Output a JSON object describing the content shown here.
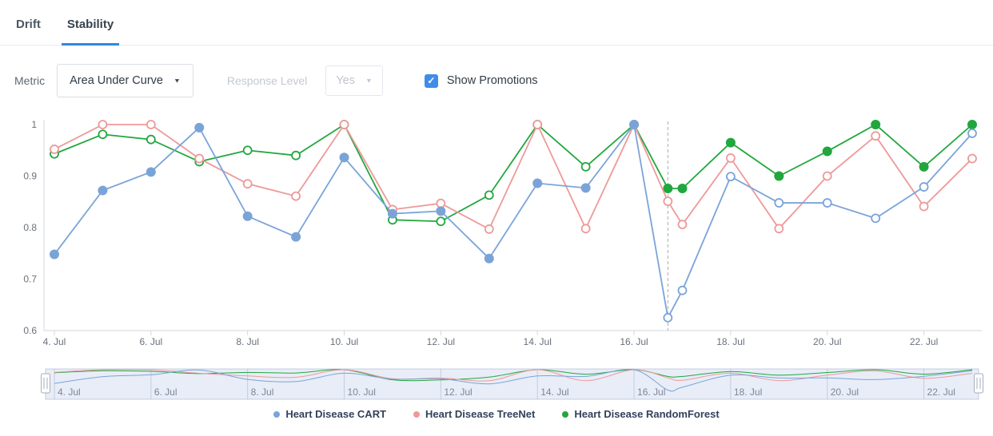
{
  "tabs": {
    "items": [
      {
        "label": "Drift",
        "active": false
      },
      {
        "label": "Stability",
        "active": true
      }
    ]
  },
  "controls": {
    "metric_label": "Metric",
    "metric_value": "Area Under Curve",
    "response_level_label": "Response Level",
    "response_level_value": "Yes",
    "show_promotions_label": "Show Promotions",
    "show_promotions_checked": true,
    "checkmark_glyph": "✓",
    "caret_glyph": "▼"
  },
  "colors": {
    "tab_underline": "#2f87e1",
    "checkbox_blue": "#418ceb",
    "axis_line": "#d4d7dc",
    "axis_text": "#68707b",
    "promotion_line": "#ababab",
    "navigator_mask": "rgba(112,140,205,0.16)",
    "navigator_border": "#c3cce4",
    "navigator_grid": "rgba(130,145,185,0.35)",
    "navigator_text": "#7d8698",
    "legend_text": "#31425b"
  },
  "chart_data": {
    "type": "line",
    "title": "",
    "xlabel": "",
    "ylabel": "",
    "x_unit": "day of July",
    "xlim": [
      3.78,
      23.25
    ],
    "ylim": [
      0.6,
      1.022
    ],
    "grid": false,
    "legend_position": "bottom",
    "y_ticks": [
      1,
      0.9,
      0.8,
      0.7,
      0.6
    ],
    "x_tick_days": [
      4,
      6,
      8,
      10,
      12,
      14,
      16,
      18,
      20,
      22
    ],
    "x_tick_label_suffix": ". Jul",
    "promotion_marker": {
      "day": 16.7,
      "style": "dashed-vertical-line"
    },
    "x_days": [
      4,
      5,
      6,
      7,
      8,
      9,
      10,
      11,
      12,
      13,
      14,
      15,
      16,
      16.7,
      17,
      18,
      19,
      20,
      21,
      22,
      23
    ],
    "series": [
      {
        "name": "Heart Disease CART",
        "color": "#7aa4d8",
        "values": [
          0.748,
          0.872,
          0.908,
          0.994,
          0.822,
          0.782,
          0.936,
          0.827,
          0.832,
          0.74,
          0.886,
          0.877,
          1.0,
          0.625,
          0.678,
          0.899,
          0.848,
          0.848,
          0.818,
          0.879,
          0.983
        ],
        "filled_marker_days": [
          4,
          16
        ]
      },
      {
        "name": "Heart Disease TreeNet",
        "color": "#ee9999",
        "values": [
          0.952,
          1.0,
          1.0,
          0.934,
          0.885,
          0.861,
          1.0,
          0.835,
          0.847,
          0.797,
          1.0,
          0.798,
          1.0,
          0.851,
          0.806,
          0.935,
          0.798,
          0.9,
          0.978,
          0.841,
          0.934
        ],
        "filled_marker_days": null
      },
      {
        "name": "Heart Disease RandomForest",
        "color": "#21a73e",
        "values": [
          0.943,
          0.981,
          0.971,
          0.928,
          0.95,
          0.94,
          1.0,
          0.815,
          0.812,
          0.863,
          1.0,
          0.918,
          1.0,
          0.876,
          0.876,
          0.965,
          0.9,
          0.948,
          1.0,
          0.918,
          1.0
        ],
        "filled_marker_days": [
          16.7,
          23
        ]
      }
    ],
    "navigator": {
      "label_days": [
        4,
        6,
        8,
        10,
        12,
        14,
        16,
        18,
        20,
        22
      ],
      "label_suffix": ". Jul",
      "full_range_selected": true
    }
  }
}
